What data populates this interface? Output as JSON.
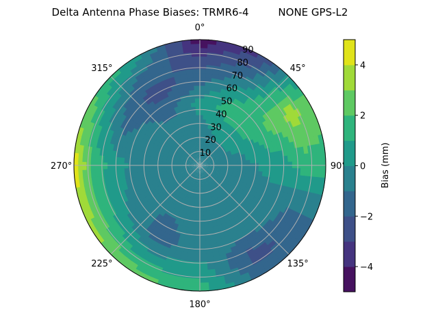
{
  "chart_data": {
    "type": "heatmap",
    "projection": "polar",
    "title": "Delta Antenna Phase Biases: TRMR6-4         NONE GPS-L2",
    "theta_direction": "clockwise",
    "theta_zero": "north",
    "theta_tick_labels": [
      "0°",
      "45°",
      "90°",
      "135°",
      "180°",
      "225°",
      "270°",
      "315°"
    ],
    "r_tick_labels": [
      "10",
      "20",
      "30",
      "40",
      "50",
      "60",
      "70",
      "80",
      "90"
    ],
    "r_ticks": [
      10,
      20,
      30,
      40,
      50,
      60,
      70,
      80,
      90
    ],
    "rlim": [
      0,
      90
    ],
    "grid": true,
    "azimuth_deg": [
      0,
      30,
      60,
      90,
      120,
      150,
      180,
      210,
      240,
      270,
      300,
      330
    ],
    "zenith_deg": [
      0,
      15,
      30,
      45,
      60,
      75,
      90
    ],
    "values_mm": [
      [
        -0.5,
        -0.5,
        -0.3,
        0.5,
        -1.5,
        -2.5,
        -4.8
      ],
      [
        -0.5,
        -0.5,
        0.5,
        1.5,
        0.5,
        -1.5,
        -3.0
      ],
      [
        -0.5,
        -0.3,
        0.5,
        1.5,
        2.5,
        3.5,
        2.5
      ],
      [
        -0.5,
        -0.5,
        -0.5,
        0.2,
        0.5,
        1.5,
        1.5
      ],
      [
        -0.5,
        -0.5,
        -0.5,
        -0.5,
        -0.5,
        -1.5,
        -1.5
      ],
      [
        -0.5,
        -0.5,
        -0.5,
        -0.7,
        -1.0,
        -2.5,
        -1.5
      ],
      [
        -0.5,
        -0.5,
        -0.5,
        -0.5,
        -0.5,
        0.5,
        1.5
      ],
      [
        -0.5,
        -0.5,
        -0.5,
        -1.2,
        -1.5,
        0.5,
        2.5
      ],
      [
        -0.5,
        -0.5,
        -0.5,
        -0.5,
        0.0,
        1.5,
        3.5
      ],
      [
        -0.5,
        -0.5,
        -0.5,
        -0.5,
        0.5,
        1.5,
        4.6
      ],
      [
        -0.5,
        -0.5,
        -0.5,
        -0.5,
        -1.5,
        0.5,
        2.5
      ],
      [
        -0.5,
        -0.5,
        -0.5,
        -1.5,
        -2.5,
        -1.5,
        0.5
      ]
    ],
    "levels": [
      -5,
      -4,
      -3,
      -2,
      -1,
      0,
      1,
      2,
      3,
      4,
      5
    ],
    "colormap": "viridis",
    "band_colors": [
      "#46125f",
      "#45347f",
      "#3e5088",
      "#33668d",
      "#2a818e",
      "#209a8a",
      "#2fb47c",
      "#5ec962",
      "#a0da39",
      "#e0e31a"
    ],
    "colorbar": {
      "label": "Bias (mm)",
      "ticks": [
        -4,
        -2,
        0,
        2,
        4
      ],
      "tick_labels": [
        "−4",
        "−2",
        "0",
        "2",
        "4"
      ],
      "range": [
        -5,
        5
      ]
    }
  }
}
